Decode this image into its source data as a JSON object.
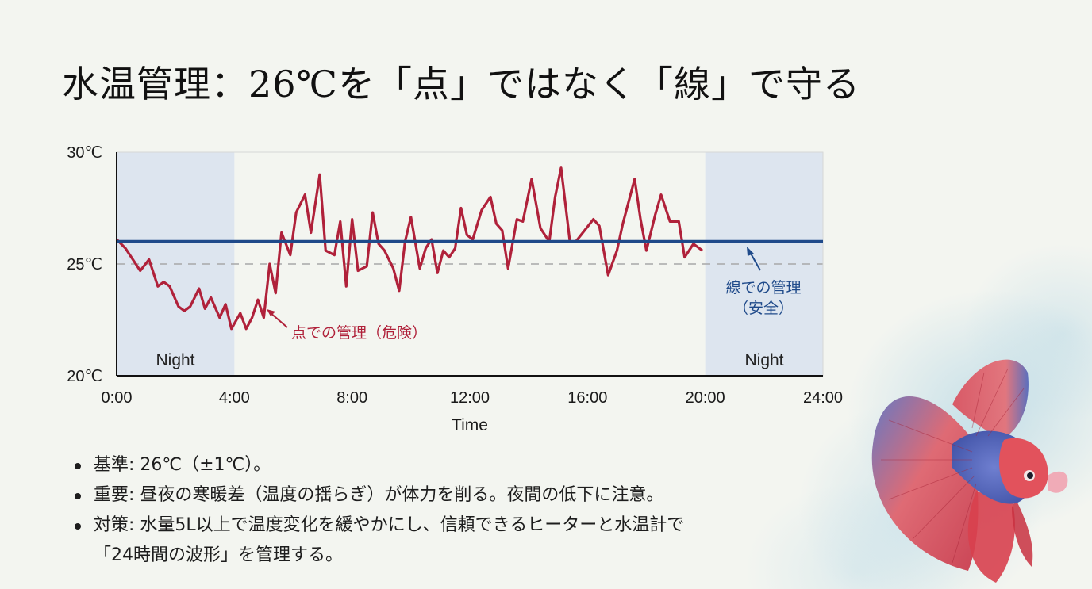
{
  "slide": {
    "title": "水温管理：26℃を「点」ではなく「線」で守る",
    "background_color": "#f3f5f0"
  },
  "chart_data": {
    "type": "line",
    "title": "",
    "xlabel": "Time",
    "ylabel": "",
    "xlim": [
      0,
      24
    ],
    "ylim": [
      20,
      30
    ],
    "x_ticks": [
      "0:00",
      "4:00",
      "8:00",
      "12:00",
      "16:00",
      "20:00",
      "24:00"
    ],
    "y_ticks": [
      "20℃",
      "25℃",
      "30℃"
    ],
    "grid": false,
    "shaded_regions": [
      {
        "label": "Night",
        "x_start": 0,
        "x_end": 4,
        "color": "#dde5ef"
      },
      {
        "label": "Night",
        "x_start": 20,
        "x_end": 24,
        "color": "#dde5ef"
      }
    ],
    "reference_lines": [
      {
        "y": 25,
        "style": "dashed",
        "color": "#a8a8a8"
      }
    ],
    "series": [
      {
        "name": "点での管理（危険）",
        "color": "#b0213a",
        "annotation": "点での管理（危険）",
        "x": [
          0.0,
          0.3,
          0.6,
          0.8,
          1.1,
          1.4,
          1.6,
          1.8,
          2.1,
          2.3,
          2.5,
          2.8,
          3.0,
          3.2,
          3.5,
          3.7,
          3.9,
          4.2,
          4.4,
          4.6,
          4.8,
          5.0,
          5.2,
          5.4,
          5.6,
          5.9,
          6.1,
          6.4,
          6.6,
          6.9,
          7.1,
          7.4,
          7.6,
          7.8,
          8.0,
          8.2,
          8.5,
          8.7,
          8.9,
          9.1,
          9.4,
          9.6,
          9.8,
          10.0,
          10.3,
          10.5,
          10.7,
          10.9,
          11.1,
          11.3,
          11.5,
          11.7,
          11.9,
          12.1,
          12.4,
          12.7,
          12.9,
          13.1,
          13.3,
          13.6,
          13.8,
          14.1,
          14.4,
          14.7,
          14.9,
          15.1,
          15.4,
          15.6,
          15.9,
          16.2,
          16.4,
          16.7,
          17.0,
          17.2,
          17.6,
          17.8,
          18.0,
          18.3,
          18.5,
          18.8,
          19.1,
          19.3,
          19.6,
          19.9
        ],
        "values": [
          26.1,
          25.7,
          25.1,
          24.7,
          25.2,
          24.0,
          24.2,
          24.0,
          23.1,
          22.9,
          23.1,
          23.9,
          23.0,
          23.5,
          22.6,
          23.2,
          22.1,
          22.8,
          22.1,
          22.6,
          23.4,
          22.6,
          25.0,
          23.7,
          26.4,
          25.4,
          27.3,
          28.1,
          26.4,
          29.0,
          25.6,
          25.4,
          26.9,
          24.0,
          27.0,
          24.7,
          24.9,
          27.3,
          25.9,
          25.6,
          24.8,
          23.8,
          26.0,
          27.1,
          24.8,
          25.7,
          26.1,
          24.6,
          25.6,
          25.3,
          25.7,
          27.5,
          26.3,
          26.1,
          27.4,
          28.0,
          26.8,
          26.5,
          24.8,
          27.0,
          26.9,
          28.8,
          26.6,
          26.0,
          28.0,
          29.3,
          26.0,
          26.0,
          26.5,
          27.0,
          26.7,
          24.5,
          25.6,
          26.8,
          28.8,
          27.0,
          25.6,
          27.2,
          28.1,
          26.9,
          26.9,
          25.3,
          25.9,
          25.6
        ]
      },
      {
        "name": "線での管理（安全）",
        "color": "#1f4a8a",
        "annotation": "線での管理\n（安全）",
        "x": [
          0,
          24
        ],
        "values": [
          26,
          26
        ]
      }
    ]
  },
  "labels": {
    "night_left": "Night",
    "night_right": "Night",
    "danger_annotation": "点での管理（危険）",
    "safe_annotation_line1": "線での管理",
    "safe_annotation_line2": "（安全）"
  },
  "bullets": [
    {
      "key": "基準:",
      "text": " 26℃（±1℃）。"
    },
    {
      "key": "重要:",
      "text": " 昼夜の寒暖差（温度の揺らぎ）が体力を削る。夜間の低下に注意。"
    },
    {
      "key": "対策:",
      "text": " 水量5L以上で温度変化を緩やかにし、信頼できるヒーターと水温計で",
      "cont": "「24時間の波形」を管理する。"
    }
  ],
  "illustration": {
    "subject": "betta-fish",
    "colors": [
      "#d6404e",
      "#5a6fc0"
    ]
  }
}
